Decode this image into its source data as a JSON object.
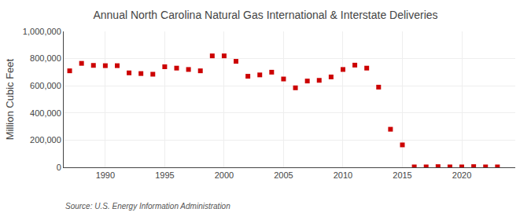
{
  "chart_data": {
    "type": "scatter",
    "title": "Annual North Carolina Natural Gas International & Interstate Deliveries",
    "ylabel": "Million Cubic Feet",
    "annotations": [
      "Source: U.S. Energy Information Administration"
    ],
    "x": [
      1987,
      1988,
      1989,
      1990,
      1991,
      1992,
      1993,
      1994,
      1995,
      1996,
      1997,
      1998,
      1999,
      2000,
      2001,
      2002,
      2003,
      2004,
      2005,
      2006,
      2007,
      2008,
      2009,
      2010,
      2011,
      2012,
      2013,
      2014,
      2015,
      2016,
      2017,
      2018,
      2019,
      2020,
      2021,
      2022,
      2023
    ],
    "values": [
      710000,
      765000,
      750000,
      748000,
      748000,
      695000,
      690000,
      685000,
      740000,
      730000,
      720000,
      710000,
      820000,
      820000,
      780000,
      670000,
      680000,
      700000,
      650000,
      585000,
      635000,
      640000,
      665000,
      720000,
      752000,
      730000,
      590000,
      280000,
      165000,
      3000,
      3000,
      5000,
      3000,
      3000,
      5000,
      3000,
      3000
    ],
    "color": "#cc0000",
    "marker": "square",
    "xlim": [
      1986.5,
      2024.5
    ],
    "xticks": [
      1990,
      1995,
      2000,
      2005,
      2010,
      2015,
      2020
    ],
    "ylim": [
      0,
      1000000
    ],
    "yticks": [
      0,
      {
        "value": 200000,
        "label": "200,000"
      },
      {
        "value": 400000,
        "label": "400,000"
      },
      {
        "value": 600000,
        "label": "600,000"
      },
      {
        "value": 800000,
        "label": "800,000"
      },
      {
        "value": 1000000,
        "label": "1,000,000"
      }
    ],
    "grid": true
  }
}
